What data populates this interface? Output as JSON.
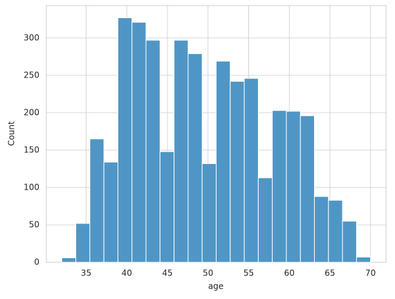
{
  "chart_data": {
    "type": "histogram",
    "xlabel": "age",
    "ylabel": "Count",
    "bins": [
      32,
      33.727,
      35.455,
      37.182,
      38.909,
      40.636,
      42.364,
      44.091,
      45.818,
      47.545,
      49.273,
      51,
      52.727,
      54.455,
      56.182,
      57.909,
      59.636,
      61.364,
      63.091,
      64.818,
      66.545,
      68.273,
      70
    ],
    "values": [
      6,
      52,
      165,
      134,
      327,
      321,
      297,
      148,
      297,
      279,
      132,
      269,
      242,
      246,
      113,
      203,
      202,
      196,
      88,
      83,
      55,
      7
    ],
    "color": "#4f96c6",
    "xlim": [
      30.1,
      71.9
    ],
    "ylim": [
      0,
      343.35
    ],
    "xticks": [
      35,
      40,
      45,
      50,
      55,
      60,
      65,
      70
    ],
    "yticks": [
      0,
      50,
      100,
      150,
      200,
      250,
      300
    ],
    "grid": true
  }
}
